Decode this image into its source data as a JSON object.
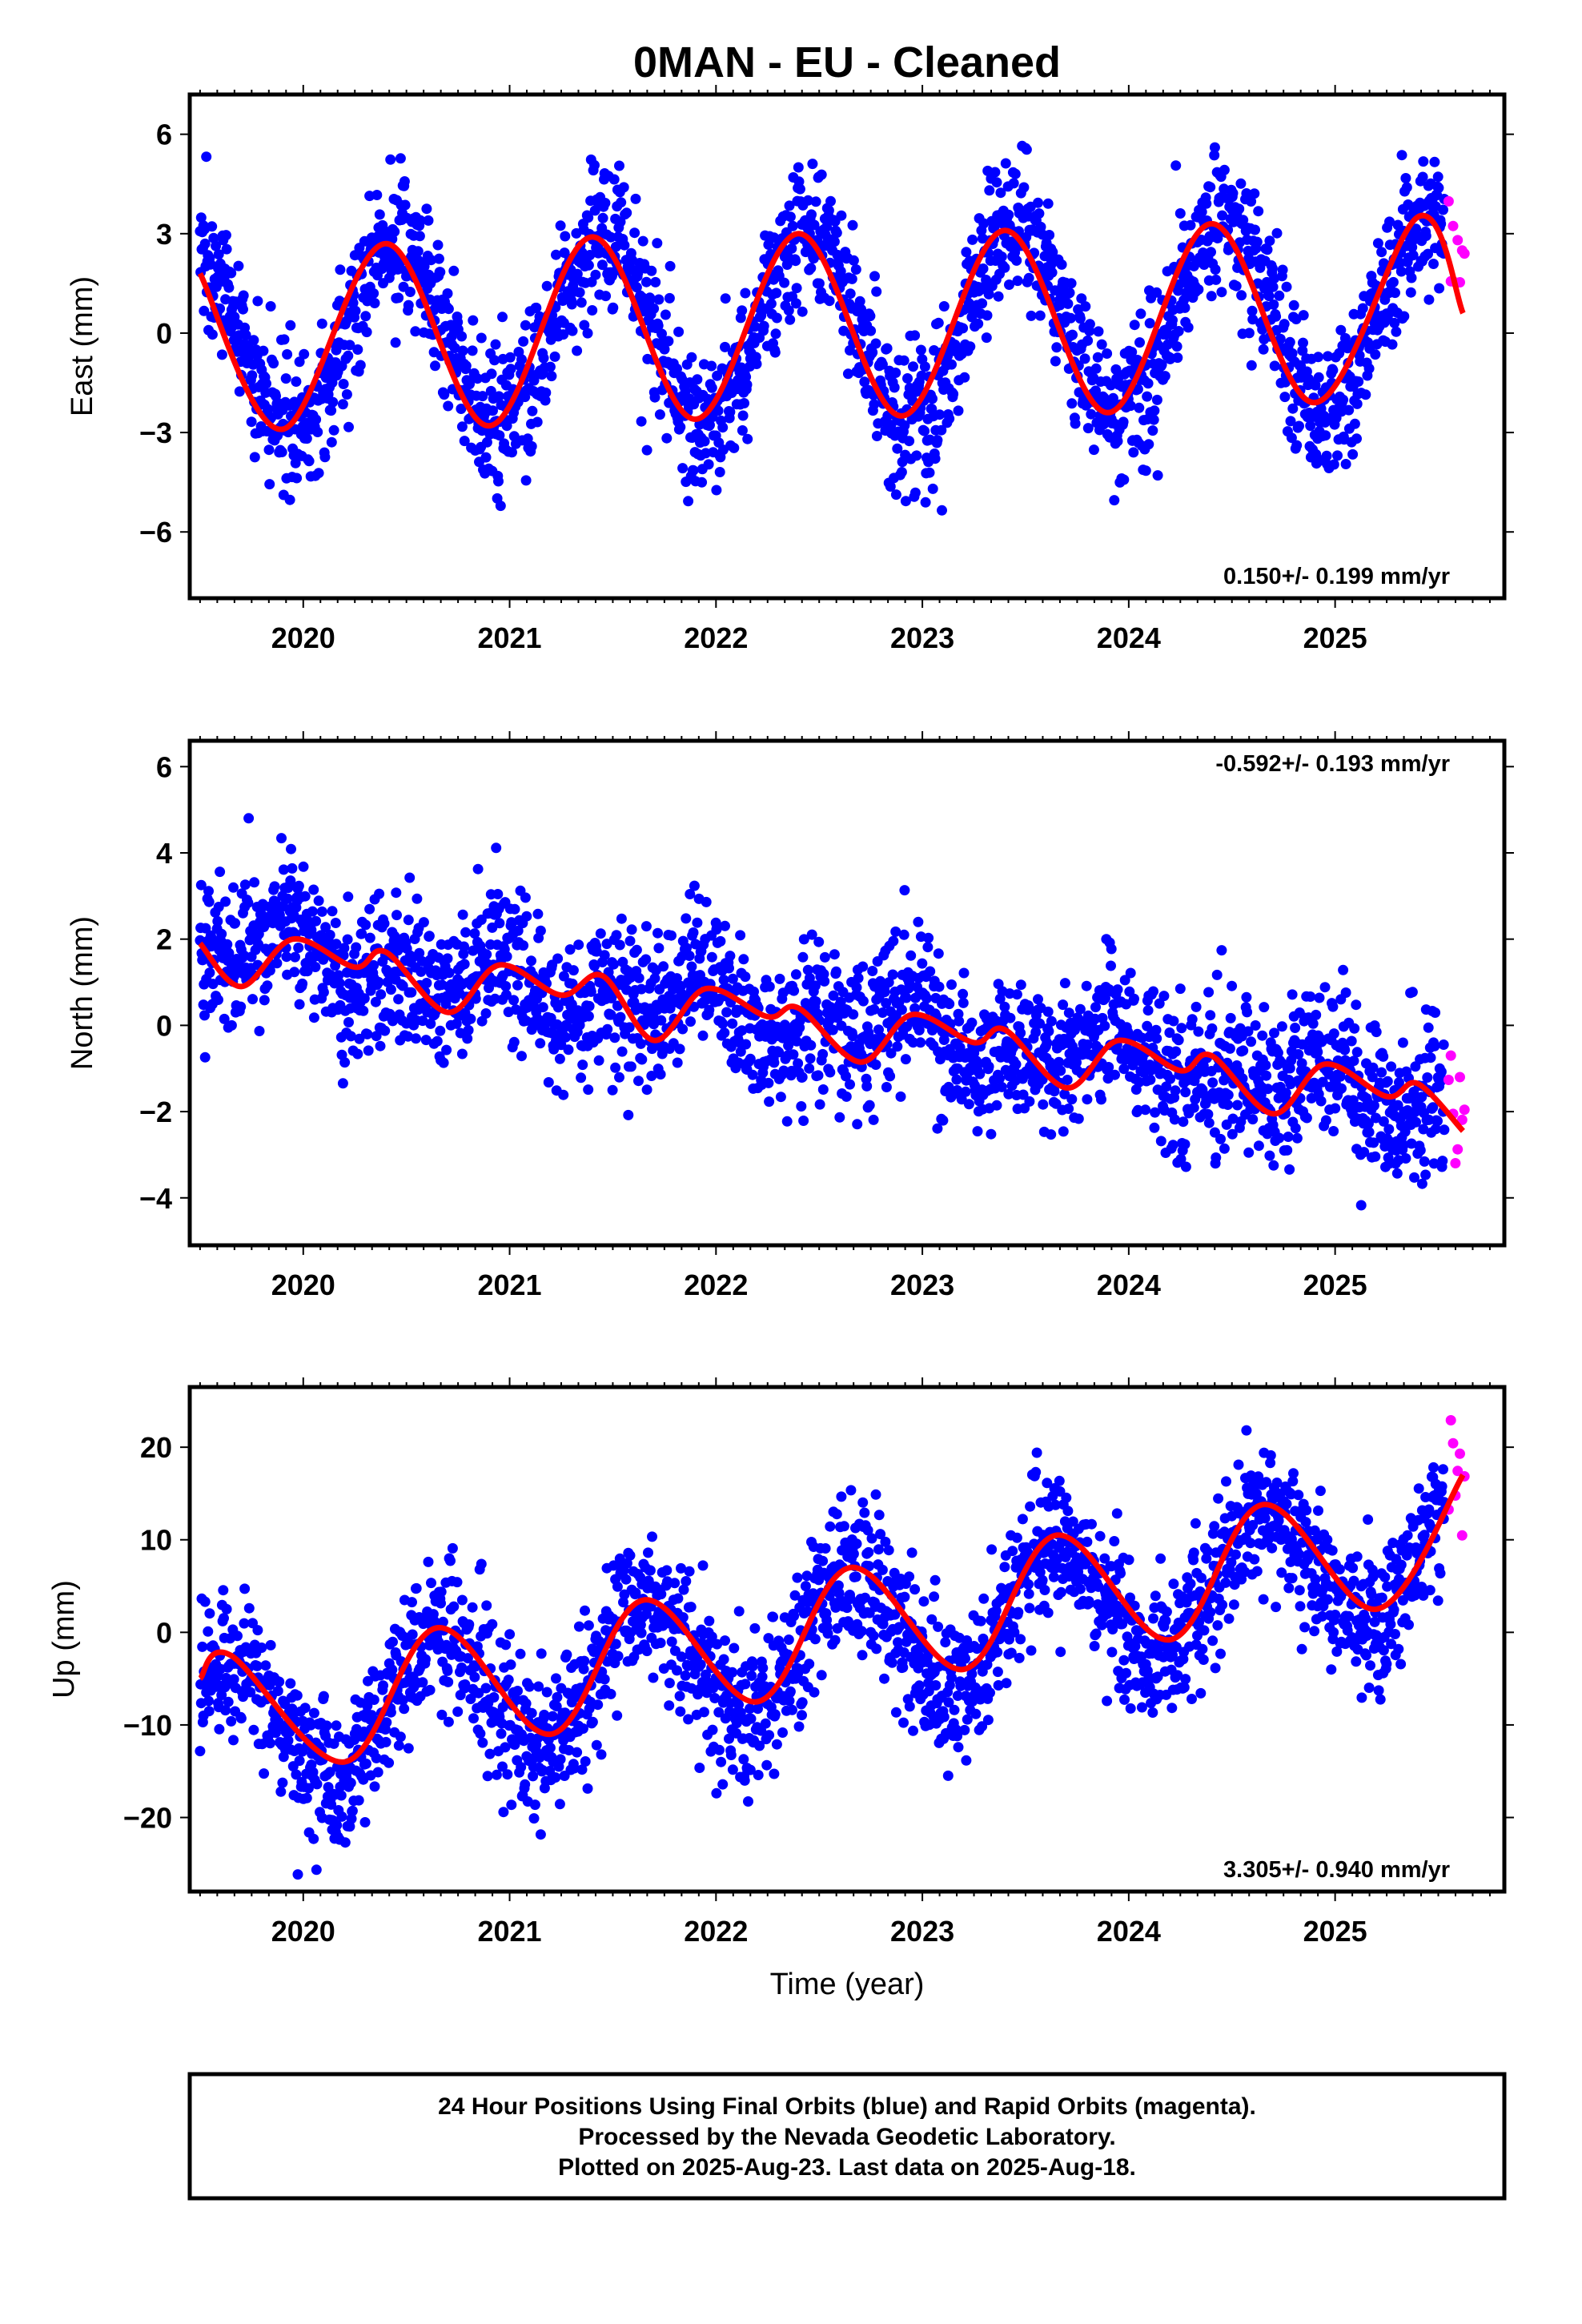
{
  "chart_data": {
    "type": "scatter",
    "title": "0MAN  - EU - Cleaned",
    "xlabel": "Time (year)",
    "xlim": [
      2019.45,
      2025.82
    ],
    "x_ticks": [
      "2020",
      "2021",
      "2022",
      "2023",
      "2024",
      "2025"
    ],
    "grid": false,
    "colors": {
      "final": "#0000ff",
      "rapid": "#ff00ff",
      "model": "#ff0000",
      "frame": "#000000"
    },
    "panels": [
      {
        "component": "east",
        "ylabel": "East (mm)",
        "ylim": [
          -8,
          7.2
        ],
        "yticks": [
          "6",
          "3",
          "0",
          "-3",
          "-6"
        ],
        "rate_text": "0.150+/- 0.199 mm/yr",
        "rate_position": "bottom-right",
        "trend": {
          "rate": 0.15,
          "offset_2022_5": 0.2,
          "annual_amplitude": 2.85,
          "annual_peak": 0.45
        },
        "scatter_sd": 1.1,
        "series": [
          {
            "name": "Final Orbits",
            "color": "#0000ff",
            "x_range": [
              2019.5,
              2025.53
            ]
          },
          {
            "name": "Rapid Orbits",
            "color": "#ff00ff",
            "x_range": [
              2025.55,
              2025.63
            ]
          },
          {
            "name": "model",
            "color": "#ff0000",
            "x": [
              2019.5,
              2019.9,
              2020.4,
              2020.9,
              2021.4,
              2021.9,
              2022.4,
              2022.9,
              2023.4,
              2023.9,
              2024.4,
              2024.9,
              2025.4,
              2025.62
            ],
            "y": [
              1.8,
              -2.9,
              2.7,
              -2.8,
              2.9,
              -2.6,
              3.0,
              -2.5,
              3.1,
              -2.4,
              3.3,
              -2.1,
              3.5,
              0.6
            ]
          }
        ]
      },
      {
        "component": "north",
        "ylabel": "North (mm)",
        "ylim": [
          -5.1,
          6.6
        ],
        "yticks": [
          "6",
          "4",
          "2",
          "0",
          "-2",
          "-4"
        ],
        "rate_text": "-0.592+/- 0.193 mm/yr",
        "rate_position": "top-right",
        "trend": {
          "rate": -0.592,
          "offset_2022_5": 0.1,
          "annual_amplitude": 0.4,
          "annual_peak": 0.9
        },
        "scatter_sd": 0.85,
        "series": [
          {
            "name": "Final Orbits",
            "color": "#0000ff",
            "x_range": [
              2019.5,
              2025.53
            ]
          },
          {
            "name": "Rapid Orbits",
            "color": "#ff00ff",
            "x_range": [
              2025.55,
              2025.63
            ]
          },
          {
            "name": "model",
            "color": "#ff0000",
            "x": [
              2019.5,
              2019.7,
              2019.95,
              2020.25,
              2020.4,
              2020.7,
              2020.95,
              2021.25,
              2021.45,
              2021.7,
              2021.95,
              2022.25,
              2022.4,
              2022.7,
              2022.95,
              2023.25,
              2023.4,
              2023.7,
              2023.95,
              2024.25,
              2024.4,
              2024.7,
              2024.95,
              2025.25,
              2025.4,
              2025.62
            ],
            "y": [
              1.9,
              0.9,
              2.0,
              1.35,
              1.7,
              0.3,
              1.4,
              0.7,
              1.15,
              -0.35,
              0.85,
              0.2,
              0.4,
              -0.85,
              0.25,
              -0.4,
              -0.1,
              -1.45,
              -0.35,
              -1.05,
              -0.7,
              -2.05,
              -0.9,
              -1.65,
              -1.35,
              -2.45
            ]
          }
        ]
      },
      {
        "component": "up",
        "ylabel": "Up (mm)",
        "ylim": [
          -28,
          26.5
        ],
        "yticks": [
          "20",
          "10",
          "0",
          "-10",
          "-20"
        ],
        "rate_text": "3.305+/- 0.940 mm/yr",
        "rate_position": "bottom-right",
        "trend": {
          "rate": 3.305,
          "offset_2022_5": -1.0,
          "annual_amplitude": 7.0,
          "annual_peak": 0.65
        },
        "scatter_sd": 4.0,
        "series": [
          {
            "name": "Final Orbits",
            "color": "#0000ff",
            "x_range": [
              2019.5,
              2025.53
            ]
          },
          {
            "name": "Rapid Orbits",
            "color": "#ff00ff",
            "x_range": [
              2025.55,
              2025.63
            ]
          },
          {
            "name": "model",
            "color": "#ff0000",
            "x": [
              2019.5,
              2019.65,
              2020.2,
              2020.65,
              2021.2,
              2021.65,
              2022.2,
              2022.65,
              2023.2,
              2023.65,
              2024.2,
              2024.65,
              2025.2,
              2025.62
            ],
            "y": [
              -5.0,
              -2.5,
              -14.0,
              0.5,
              -11.0,
              3.5,
              -7.5,
              7.0,
              -4.0,
              10.5,
              -0.8,
              13.8,
              2.5,
              17.0
            ]
          }
        ]
      }
    ]
  },
  "footer": {
    "line1": "24 Hour Positions Using Final Orbits (blue) and Rapid Orbits (magenta).",
    "line2": "Processed by the Nevada Geodetic Laboratory.",
    "line3": "Plotted on 2025-Aug-23. Last data on 2025-Aug-18."
  }
}
